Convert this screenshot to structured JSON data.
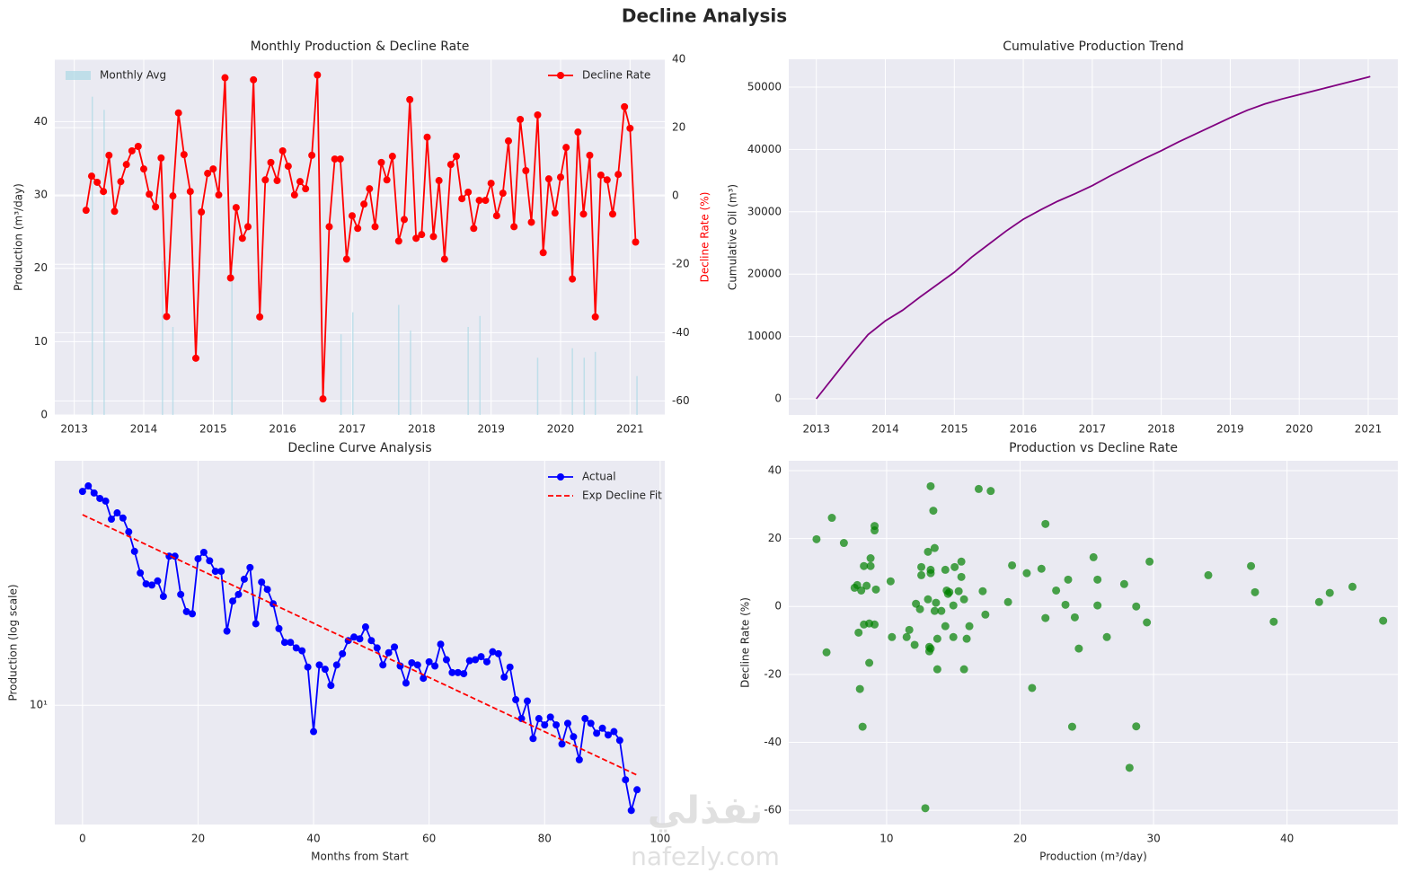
{
  "title": "Decline Analysis",
  "watermark": [
    "نفذلي",
    "nafezly.com"
  ],
  "chart_data": [
    {
      "type": "combo",
      "title": "Monthly Production & Decline Rate",
      "ylabel": "Production (m³/day)",
      "y2label": "Decline Rate (%)",
      "y2label_color": "red",
      "xlim": [
        2012.72,
        2021.5
      ],
      "xticks": [
        2013,
        2014,
        2015,
        2016,
        2017,
        2018,
        2019,
        2020,
        2021
      ],
      "ylim": [
        0,
        48.5
      ],
      "yticks": [
        0,
        10,
        20,
        30,
        40
      ],
      "y2lim": [
        -64.1,
        40
      ],
      "y2ticks": [
        -60,
        -40,
        -20,
        0,
        20,
        40
      ],
      "grid": true,
      "series": [
        {
          "name": "Monthly Avg",
          "type": "bar",
          "color": "#add8e6",
          "legend": "upper left",
          "x": [
            2013.26,
            2013.43,
            2014.27,
            2014.42,
            2015.27,
            2016.84,
            2017.01,
            2017.67,
            2017.84,
            2018.67,
            2018.84,
            2019.67,
            2020.17,
            2020.34,
            2020.5,
            2021.1
          ],
          "values": [
            43.4,
            41.6,
            21,
            12,
            20,
            11,
            14,
            15,
            11.5,
            12,
            13.5,
            7.8,
            9.1,
            7.8,
            8.6,
            5.3
          ]
        },
        {
          "name": "Decline Rate",
          "type": "line",
          "axis": "y2",
          "color": "red",
          "marker": true,
          "legend": "upper right",
          "x": [
            2013.17,
            2013.25,
            2013.33,
            2013.42,
            2013.5,
            2013.58,
            2013.67,
            2013.75,
            2013.83,
            2013.92,
            2014,
            2014.08,
            2014.17,
            2014.25,
            2014.33,
            2014.42,
            2014.5,
            2014.58,
            2014.67,
            2014.75,
            2014.83,
            2014.92,
            2015,
            2015.08,
            2015.17,
            2015.25,
            2015.33,
            2015.42,
            2015.5,
            2015.58,
            2015.67,
            2015.75,
            2015.83,
            2015.92,
            2016,
            2016.08,
            2016.17,
            2016.25,
            2016.33,
            2016.42,
            2016.5,
            2016.58,
            2016.67,
            2016.75,
            2016.83,
            2016.92,
            2017,
            2017.08,
            2017.17,
            2017.25,
            2017.33,
            2017.42,
            2017.5,
            2017.58,
            2017.67,
            2017.75,
            2017.83,
            2017.92,
            2018,
            2018.08,
            2018.17,
            2018.25,
            2018.33,
            2018.42,
            2018.5,
            2018.58,
            2018.67,
            2018.75,
            2018.83,
            2018.92,
            2019,
            2019.08,
            2019.17,
            2019.25,
            2019.33,
            2019.42,
            2019.5,
            2019.58,
            2019.67,
            2019.75,
            2019.83,
            2019.92,
            2020,
            2020.08,
            2020.17,
            2020.25,
            2020.33,
            2020.42,
            2020.5,
            2020.58,
            2020.67,
            2020.75,
            2020.83,
            2020.92,
            2021,
            2021.08
          ],
          "values": [
            -4.2,
            5.8,
            4.0,
            1.3,
            11.9,
            -4.5,
            4.2,
            9.2,
            13.2,
            14.5,
            7.9,
            0.5,
            -3.2,
            11.1,
            -35.3,
            0,
            24.3,
            12.1,
            1.3,
            -47.5,
            -4.7,
            6.6,
            7.9,
            0.3,
            34.6,
            -24.0,
            -3.4,
            -12.4,
            -9.0,
            34.0,
            -35.4,
            4.7,
            9.8,
            4.5,
            13.2,
            8.7,
            0.3,
            4.2,
            2.1,
            11.9,
            35.4,
            -59.4,
            -9.0,
            10.8,
            10.8,
            -18.5,
            -5.8,
            -9.5,
            -2.4,
            2.1,
            -9.0,
            9.8,
            4.7,
            11.6,
            -13.2,
            -6.9,
            28.2,
            -12.4,
            -11.3,
            17.2,
            -11.9,
            4.5,
            -18.5,
            9.2,
            11.6,
            -0.8,
            1.1,
            -9.5,
            -1.3,
            -1.3,
            3.7,
            -5.8,
            0.8,
            16.1,
            -9.0,
            22.4,
            7.4,
            -7.7,
            23.7,
            -16.6,
            5.0,
            -5.0,
            5.5,
            14.2,
            -24.3,
            18.7,
            -5.3,
            11.9,
            -35.4,
            6.1,
            4.7,
            -5.3,
            6.3,
            26.1,
            19.8,
            -13.5
          ]
        }
      ]
    },
    {
      "type": "line",
      "title": "Cumulative Production Trend",
      "ylabel": "Cumulative Oil (m³)",
      "xlim": [
        2012.6,
        2021.43
      ],
      "xticks": [
        2013,
        2014,
        2015,
        2016,
        2017,
        2018,
        2019,
        2020,
        2021
      ],
      "ylim": [
        -2594,
        54467
      ],
      "yticks": [
        0,
        10000,
        20000,
        30000,
        40000,
        50000
      ],
      "grid": true,
      "series": [
        {
          "color": "purple",
          "x": [
            2013,
            2013.25,
            2013.5,
            2013.75,
            2014,
            2014.25,
            2014.5,
            2014.75,
            2015,
            2015.25,
            2015.5,
            2015.75,
            2016,
            2016.25,
            2016.5,
            2016.75,
            2017,
            2017.25,
            2017.5,
            2017.75,
            2018,
            2018.25,
            2018.5,
            2018.75,
            2019,
            2019.25,
            2019.5,
            2019.75,
            2020,
            2020.25,
            2020.5,
            2020.75,
            2021,
            2021.03
          ],
          "values": [
            0,
            3500,
            7000,
            10300,
            12500,
            14200,
            16300,
            18300,
            20300,
            22700,
            24800,
            26900,
            28800,
            30300,
            31700,
            32900,
            34200,
            35700,
            37100,
            38500,
            39800,
            41200,
            42500,
            43800,
            45100,
            46300,
            47300,
            48100,
            48800,
            49500,
            50200,
            50900,
            51600,
            51700
          ]
        }
      ]
    },
    {
      "type": "line",
      "title": "Decline Curve Analysis",
      "xlabel": "Months from Start",
      "ylabel": "Production (log scale)",
      "log_scale": true,
      "legend": "upper right",
      "grid": true,
      "xlim": [
        -4.8,
        100.8
      ],
      "xticks": [
        0,
        20,
        40,
        60,
        80,
        100
      ],
      "ylim": [
        4.3,
        56.4
      ],
      "yticks": [
        {
          "value": 10,
          "label": "10¹"
        }
      ],
      "series": [
        {
          "name": "Actual",
          "color": "blue",
          "marker": true,
          "x": [
            0,
            1,
            2,
            3,
            4,
            5,
            6,
            7,
            8,
            9,
            10,
            11,
            12,
            13,
            14,
            15,
            16,
            17,
            18,
            19,
            20,
            21,
            22,
            23,
            24,
            25,
            26,
            27,
            28,
            29,
            30,
            31,
            32,
            33,
            34,
            35,
            36,
            37,
            38,
            39,
            40,
            41,
            42,
            43,
            44,
            45,
            46,
            47,
            48,
            49,
            50,
            51,
            52,
            53,
            54,
            55,
            56,
            57,
            58,
            59,
            60,
            61,
            62,
            63,
            64,
            65,
            66,
            67,
            68,
            69,
            70,
            71,
            72,
            73,
            74,
            75,
            76,
            77,
            78,
            79,
            80,
            81,
            82,
            83,
            84,
            85,
            86,
            87,
            88,
            89,
            90,
            91,
            92,
            93,
            94,
            95,
            96
          ],
          "values": [
            45.4,
            47.2,
            44.9,
            43.2,
            42.4,
            37.3,
            39.0,
            37.6,
            34.1,
            29.7,
            25.5,
            23.6,
            23.4,
            24.1,
            21.6,
            28.7,
            28.7,
            21.9,
            19.4,
            19.1,
            28.2,
            29.5,
            27.8,
            25.8,
            25.8,
            16.9,
            20.9,
            21.9,
            24.4,
            26.5,
            17.8,
            23.9,
            22.7,
            20.5,
            17.2,
            15.6,
            15.6,
            15.0,
            14.7,
            13.1,
            8.3,
            13.3,
            12.9,
            11.5,
            13.3,
            14.4,
            15.8,
            16.2,
            16.0,
            17.4,
            15.8,
            15.0,
            13.3,
            14.5,
            15.1,
            13.2,
            11.7,
            13.5,
            13.3,
            12.1,
            13.6,
            13.2,
            15.4,
            13.8,
            12.6,
            12.6,
            12.5,
            13.7,
            13.8,
            14.1,
            13.6,
            14.6,
            14.4,
            12.2,
            13.1,
            10.4,
            9.1,
            10.3,
            7.9,
            9.1,
            8.7,
            9.2,
            8.7,
            7.6,
            8.8,
            8.0,
            6.8,
            9.1,
            8.8,
            8.2,
            8.5,
            8.1,
            8.3,
            7.8,
            5.9,
            4.75,
            5.5
          ]
        },
        {
          "name": "Exp Decline Fit",
          "color": "red",
          "dash": true,
          "x": [
            0,
            96
          ],
          "values": [
            38.5,
            6.1
          ]
        }
      ]
    },
    {
      "type": "scatter",
      "title": "Production vs Decline Rate",
      "xlabel": "Production (m³/day)",
      "ylabel": "Decline Rate (%)",
      "xlim": [
        2.67,
        48.3
      ],
      "xticks": [
        10,
        20,
        30,
        40
      ],
      "ylim": [
        -64.2,
        42.9
      ],
      "yticks": [
        -60,
        -40,
        -20,
        0,
        20,
        40
      ],
      "grid": true,
      "series": [
        {
          "color": "green",
          "x": [
            47.2,
            44.9,
            43.2,
            42.4,
            37.3,
            39.0,
            37.6,
            34.1,
            29.7,
            25.5,
            23.6,
            23.4,
            24.1,
            21.6,
            28.7,
            28.7,
            21.9,
            19.4,
            19.1,
            28.2,
            29.5,
            27.8,
            25.8,
            25.8,
            16.9,
            20.9,
            21.9,
            24.4,
            26.5,
            17.8,
            23.9,
            22.7,
            20.5,
            17.2,
            15.6,
            15.6,
            15.0,
            14.7,
            13.1,
            8.3,
            13.3,
            12.9,
            11.5,
            13.3,
            14.4,
            15.8,
            16.2,
            16.0,
            17.4,
            15.8,
            15.0,
            13.3,
            14.5,
            15.1,
            13.2,
            11.7,
            13.5,
            13.3,
            12.1,
            13.6,
            13.2,
            15.4,
            13.8,
            12.6,
            12.6,
            12.5,
            13.7,
            13.8,
            14.1,
            13.6,
            14.6,
            14.4,
            12.2,
            13.1,
            10.4,
            9.1,
            10.3,
            7.9,
            9.1,
            8.7,
            9.2,
            8.7,
            7.6,
            8.8,
            8.0,
            6.8,
            9.1,
            8.8,
            8.2,
            8.5,
            8.1,
            8.3,
            7.8,
            5.9,
            4.75,
            5.5
          ],
          "values": [
            -4.2,
            5.8,
            4.0,
            1.3,
            11.9,
            -4.5,
            4.2,
            9.2,
            13.2,
            14.5,
            7.9,
            0.5,
            -3.2,
            11.1,
            -35.3,
            0,
            24.3,
            12.1,
            1.3,
            -47.5,
            -4.7,
            6.6,
            7.9,
            0.3,
            34.6,
            -24.0,
            -3.4,
            -12.4,
            -9.0,
            34.0,
            -35.4,
            4.7,
            9.8,
            4.5,
            13.2,
            8.7,
            0.3,
            4.2,
            2.1,
            11.9,
            35.4,
            -59.4,
            -9.0,
            10.8,
            10.8,
            -18.5,
            -5.8,
            -9.5,
            -2.4,
            2.1,
            -9.0,
            9.8,
            4.7,
            11.6,
            -13.2,
            -6.9,
            28.2,
            -12.4,
            -11.3,
            17.2,
            -11.9,
            4.5,
            -18.5,
            9.2,
            11.6,
            -0.8,
            1.1,
            -9.5,
            -1.3,
            -1.3,
            3.7,
            -5.8,
            0.8,
            16.1,
            -9.0,
            22.4,
            7.4,
            -7.7,
            23.7,
            -16.6,
            5.0,
            -5.0,
            5.5,
            14.2,
            -24.3,
            18.7,
            -5.3,
            11.9,
            -35.4,
            6.1,
            4.7,
            -5.3,
            6.3,
            26.1,
            19.8,
            -13.5
          ]
        }
      ]
    }
  ]
}
